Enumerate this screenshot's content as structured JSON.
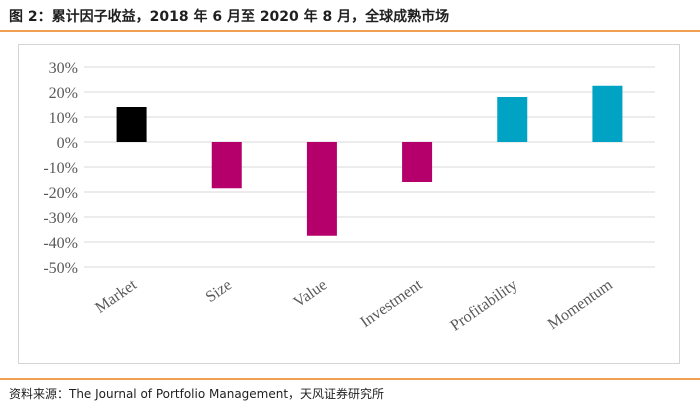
{
  "header": {
    "title": "图 2：累计因子收益，2018 年 6 月至 2020 年 8 月，全球成熟市场"
  },
  "footer": {
    "source": "资料来源：The Journal of Portfolio Management，天风证券研究所"
  },
  "colors": {
    "accent_rule": "#f0a050",
    "grid": "#d9d9d9",
    "market": "#000000",
    "negative": "#b5006b",
    "positive": "#00a3c4"
  },
  "chart_data": {
    "type": "bar",
    "title": "",
    "xlabel": "",
    "ylabel": "",
    "categories": [
      "Market",
      "Size",
      "Value",
      "Investment",
      "Profitability",
      "Momentum"
    ],
    "values": [
      14,
      -18.5,
      -37.5,
      -16,
      18,
      22.5
    ],
    "bar_colors": [
      "#000000",
      "#b5006b",
      "#b5006b",
      "#b5006b",
      "#00a3c4",
      "#00a3c4"
    ],
    "ylim": [
      -50,
      30
    ],
    "yticks": [
      30,
      20,
      10,
      0,
      -10,
      -20,
      -30,
      -40,
      -50
    ],
    "ytick_labels": [
      "30%",
      "20%",
      "10%",
      "0%",
      "-10%",
      "-20%",
      "-30%",
      "-40%",
      "-50%"
    ],
    "grid": true,
    "legend": "none"
  }
}
